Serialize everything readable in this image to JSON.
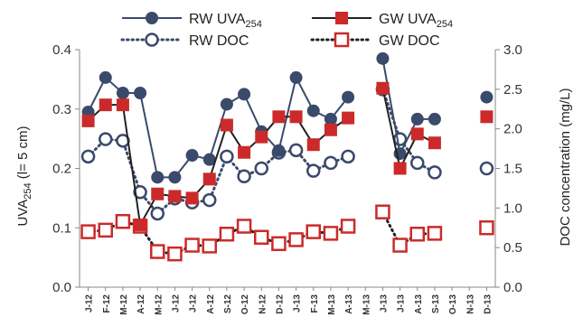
{
  "chart_data": {
    "type": "line",
    "categories": [
      "J-12",
      "F-12",
      "M-12",
      "A-12",
      "M-12",
      "J-12",
      "J-12",
      "A-12",
      "S-12",
      "O-12",
      "N-12",
      "D-12",
      "J-13",
      "F-13",
      "M-13",
      "A-13",
      "M-13",
      "J-13",
      "J-13",
      "A-13",
      "S-13",
      "O-13",
      "N-13",
      "D-13"
    ],
    "y_left": {
      "label_main": "UVA",
      "label_sub": "254",
      "label_tail": " (l= 5 cm)",
      "ylim": [
        0,
        0.4
      ],
      "ticks": [
        "0.0",
        "0.1",
        "0.2",
        "0.3",
        "0.4"
      ]
    },
    "y_right": {
      "label": "DOC  concentration (mg/L)",
      "ylim": [
        0,
        3.0
      ],
      "ticks": [
        "0.0",
        "0.5",
        "1.0",
        "1.5",
        "2.0",
        "2.5",
        "3.0"
      ]
    },
    "legend_position": "top",
    "series": [
      {
        "name_main": "RW UVA",
        "name_sub": "254",
        "axis": "left",
        "marker": "circle",
        "line": "solid",
        "color": "#3a4a6b",
        "values": [
          0.295,
          0.353,
          0.327,
          0.327,
          0.185,
          0.185,
          0.222,
          0.215,
          0.308,
          0.325,
          0.262,
          0.23,
          0.353,
          0.297,
          0.283,
          0.32,
          null,
          0.385,
          0.225,
          0.283,
          0.283,
          null,
          null,
          0.32
        ]
      },
      {
        "name_main": "GW UVA",
        "name_sub": "254",
        "axis": "left",
        "marker": "square",
        "line": "solid",
        "color": "#cc2a2a",
        "line_color": "#222222",
        "values": [
          0.28,
          0.307,
          0.307,
          0.105,
          0.157,
          0.153,
          0.15,
          0.182,
          0.273,
          0.227,
          0.253,
          0.287,
          0.287,
          0.24,
          0.265,
          0.285,
          null,
          0.335,
          0.2,
          0.258,
          0.243,
          null,
          null,
          0.287
        ]
      },
      {
        "name": "RW DOC",
        "axis": "right",
        "marker": "open-circle",
        "line": "dotted",
        "color": "#3a4a6b",
        "values": [
          1.65,
          1.87,
          1.85,
          1.2,
          0.93,
          1.12,
          1.07,
          1.1,
          1.65,
          1.4,
          1.5,
          1.7,
          1.73,
          1.47,
          1.57,
          1.65,
          null,
          2.5,
          1.87,
          1.57,
          1.45,
          null,
          null,
          1.5
        ]
      },
      {
        "name": "GW DOC",
        "axis": "right",
        "marker": "open-square",
        "line": "dotted",
        "color": "#cc2a2a",
        "line_color": "#222222",
        "values": [
          0.7,
          0.72,
          0.83,
          0.77,
          0.45,
          0.42,
          0.53,
          0.52,
          0.67,
          0.77,
          0.63,
          0.55,
          0.6,
          0.7,
          0.68,
          0.77,
          null,
          0.95,
          0.53,
          0.67,
          0.68,
          null,
          null,
          0.75
        ]
      }
    ]
  }
}
